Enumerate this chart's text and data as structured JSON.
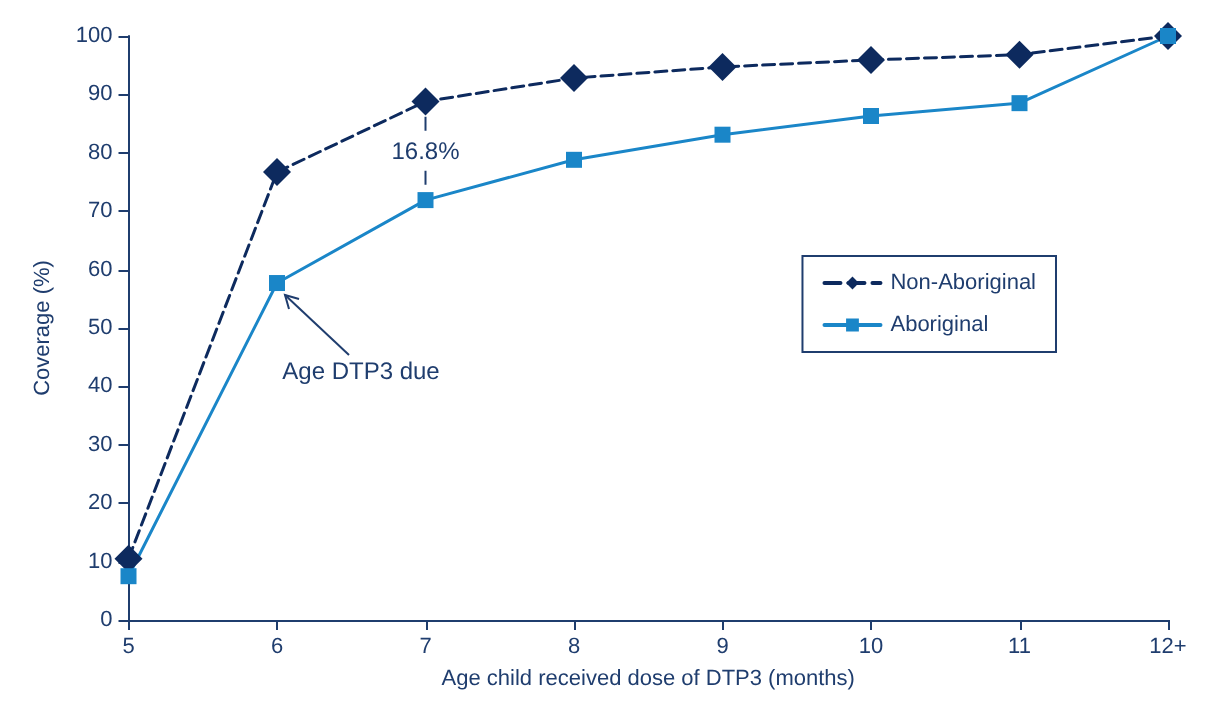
{
  "chart_data": {
    "type": "line",
    "xlabel": "Age child received dose of DTP3 (months)",
    "ylabel": "Coverage (%)",
    "categories": [
      "5",
      "6",
      "7",
      "8",
      "9",
      "10",
      "11",
      "12+"
    ],
    "series": [
      {
        "name": "Non-Aboriginal",
        "color": "#0d2a5e",
        "marker": "diamond",
        "line_style": "dashed",
        "values": [
          10.5,
          76.7,
          88.8,
          92.8,
          94.7,
          95.9,
          96.8,
          100
        ]
      },
      {
        "name": "Aboriginal",
        "color": "#1a86c8",
        "marker": "square",
        "line_style": "solid",
        "values": [
          7.5,
          57.7,
          71.9,
          78.8,
          83.1,
          86.3,
          88.5,
          100
        ]
      }
    ],
    "ylim": [
      0,
      100
    ],
    "yticks": [
      0,
      10,
      20,
      30,
      40,
      50,
      60,
      70,
      80,
      90,
      100
    ],
    "grid": false,
    "legend": "right",
    "annotations": [
      "16.8%",
      {
        "text": "Age DTP3 due",
        "x": "6",
        "y": 57.7
      }
    ]
  }
}
